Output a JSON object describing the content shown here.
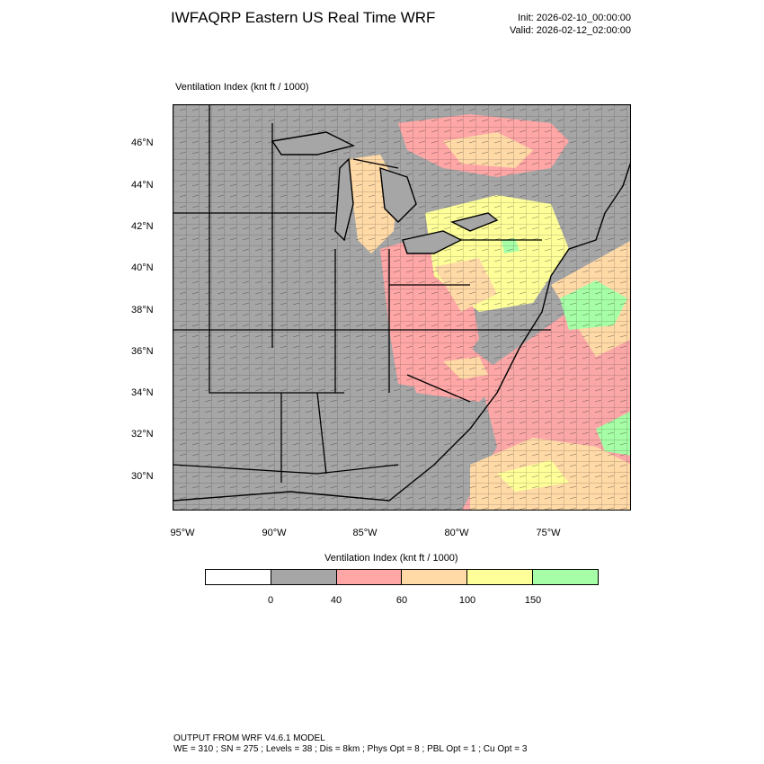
{
  "header": {
    "title": "IWFAQRP Eastern US Real Time WRF",
    "init": "Init: 2026-02-10_00:00:00",
    "valid": "Valid: 2026-02-12_02:00:00"
  },
  "field": {
    "title": "Ventilation Index   (knt ft / 1000)"
  },
  "map": {
    "lat_ticks": [
      "46°N",
      "44°N",
      "42°N",
      "40°N",
      "38°N",
      "36°N",
      "34°N",
      "32°N",
      "30°N"
    ],
    "lon_ticks": [
      "95°W",
      "90°W",
      "85°W",
      "80°W",
      "75°W"
    ],
    "base_color": "#a6a6a6"
  },
  "colorbar": {
    "title": "Ventilation Index  (knt ft / 1000)",
    "colors": [
      "#ffffff",
      "#a6a6a6",
      "#ffa6a6",
      "#ffd9a6",
      "#ffff99",
      "#a6ffa6"
    ],
    "labels": [
      "0",
      "40",
      "60",
      "100",
      "150"
    ]
  },
  "footer": {
    "line1": "OUTPUT FROM WRF V4.6.1 MODEL",
    "line2": "WE = 310 ; SN = 275 ; Levels = 38 ; Dis = 8km ; Phys Opt = 8 ; PBL Opt = 1 ; Cu Opt = 3"
  }
}
